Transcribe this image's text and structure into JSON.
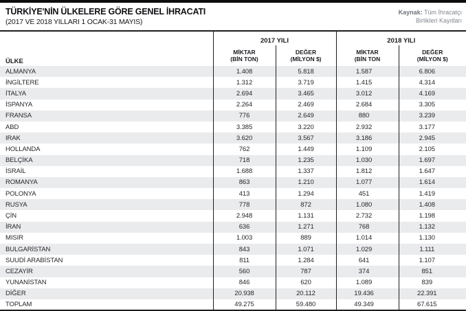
{
  "header": {
    "title": "TÜRKİYE'NİN ÜLKELERE GÖRE GENEL İHRACATI",
    "subtitle": "(2017 VE 2018 YILLARI 1 OCAK-31 MAYIS)",
    "source": {
      "label": "Kaynak:",
      "line1": "Tüm İhracatçı",
      "line2": "Birlikleri Kayıtları"
    }
  },
  "chart_data": {
    "type": "table",
    "title": "TÜRKİYE'NİN ÜLKELERE GÖRE GENEL İHRACATI (2017 VE 2018 YILLARI 1 OCAK-31 MAYIS)",
    "source": "Kaynak: Tüm İhracatçı Birlikleri Kayıtları",
    "country_header": "ÜLKE",
    "groups": [
      {
        "label": "2017 YILI",
        "columns": [
          {
            "line1": "MİKTAR",
            "line2": "(BİN TON)"
          },
          {
            "line1": "DEĞER",
            "line2": "(MİLYON $)"
          }
        ]
      },
      {
        "label": "2018 YILI",
        "columns": [
          {
            "line1": "MİKTAR",
            "line2": "(BİN TON"
          },
          {
            "line1": "DEĞER",
            "line2": "(MİLYON $)"
          }
        ]
      }
    ],
    "column_keys": [
      "miktar_2017_bin_ton",
      "deger_2017_milyon_usd",
      "miktar_2018_bin_ton",
      "deger_2018_milyon_usd"
    ],
    "rows": [
      {
        "country": "ALMANYA",
        "values": [
          "1.408",
          "5.818",
          "1.587",
          "6.806"
        ]
      },
      {
        "country": "İNGİLTERE",
        "values": [
          "1.312",
          "3.719",
          "1.415",
          "4.314"
        ]
      },
      {
        "country": "İTALYA",
        "values": [
          "2.694",
          "3.465",
          "3.012",
          "4.169"
        ]
      },
      {
        "country": "İSPANYA",
        "values": [
          "2.264",
          "2.469",
          "2.684",
          "3.305"
        ]
      },
      {
        "country": "FRANSA",
        "values": [
          "776",
          "2.649",
          "880",
          "3.239"
        ]
      },
      {
        "country": "ABD",
        "values": [
          "3.385",
          "3.220",
          "2.932",
          "3.177"
        ]
      },
      {
        "country": "IRAK",
        "values": [
          "3.620",
          "3.567",
          "3.186",
          "2.945"
        ]
      },
      {
        "country": "HOLLANDA",
        "values": [
          "762",
          "1.449",
          "1.109",
          "2.105"
        ]
      },
      {
        "country": "BELÇİKA",
        "values": [
          "718",
          "1.235",
          "1.030",
          "1.697"
        ]
      },
      {
        "country": "İSRAİL",
        "values": [
          "1.688",
          "1.337",
          "1.812",
          "1.647"
        ]
      },
      {
        "country": "ROMANYA",
        "values": [
          "863",
          "1.210",
          "1.077",
          "1.614"
        ]
      },
      {
        "country": "POLONYA",
        "values": [
          "413",
          "1.294",
          "451",
          "1.419"
        ]
      },
      {
        "country": "RUSYA",
        "values": [
          "778",
          "872",
          "1.080",
          "1.408"
        ]
      },
      {
        "country": "ÇİN",
        "values": [
          "2.948",
          "1.131",
          "2.732",
          "1.198"
        ]
      },
      {
        "country": "İRAN",
        "values": [
          "636",
          "1.271",
          "768",
          "1.132"
        ]
      },
      {
        "country": "MISIR",
        "values": [
          "1.003",
          "889",
          "1.014",
          "1.130"
        ]
      },
      {
        "country": "BULGARİSTAN",
        "values": [
          "843",
          "1.071",
          "1.029",
          "1.111"
        ]
      },
      {
        "country": "SUUDİ ARABİSTAN",
        "values": [
          "811",
          "1.284",
          "641",
          "1.107"
        ]
      },
      {
        "country": "CEZAYİR",
        "values": [
          "560",
          "787",
          "374",
          "851"
        ]
      },
      {
        "country": "YUNANİSTAN",
        "values": [
          "846",
          "620",
          "1.089",
          "839"
        ]
      },
      {
        "country": "DİĞER",
        "values": [
          "20.938",
          "20.112",
          "19.436",
          "22.391"
        ]
      },
      {
        "country": "TOPLAM",
        "values": [
          "49.275",
          "59.480",
          "49.349",
          "67.615"
        ]
      }
    ],
    "layout": {
      "grid": "off",
      "alternating_row_shading": true
    }
  },
  "colors": {
    "top_bar": "#0d0d0f",
    "table_border": "#1c1c1e",
    "row_alt_background": "#eaebec",
    "source_text": "#80858d"
  }
}
